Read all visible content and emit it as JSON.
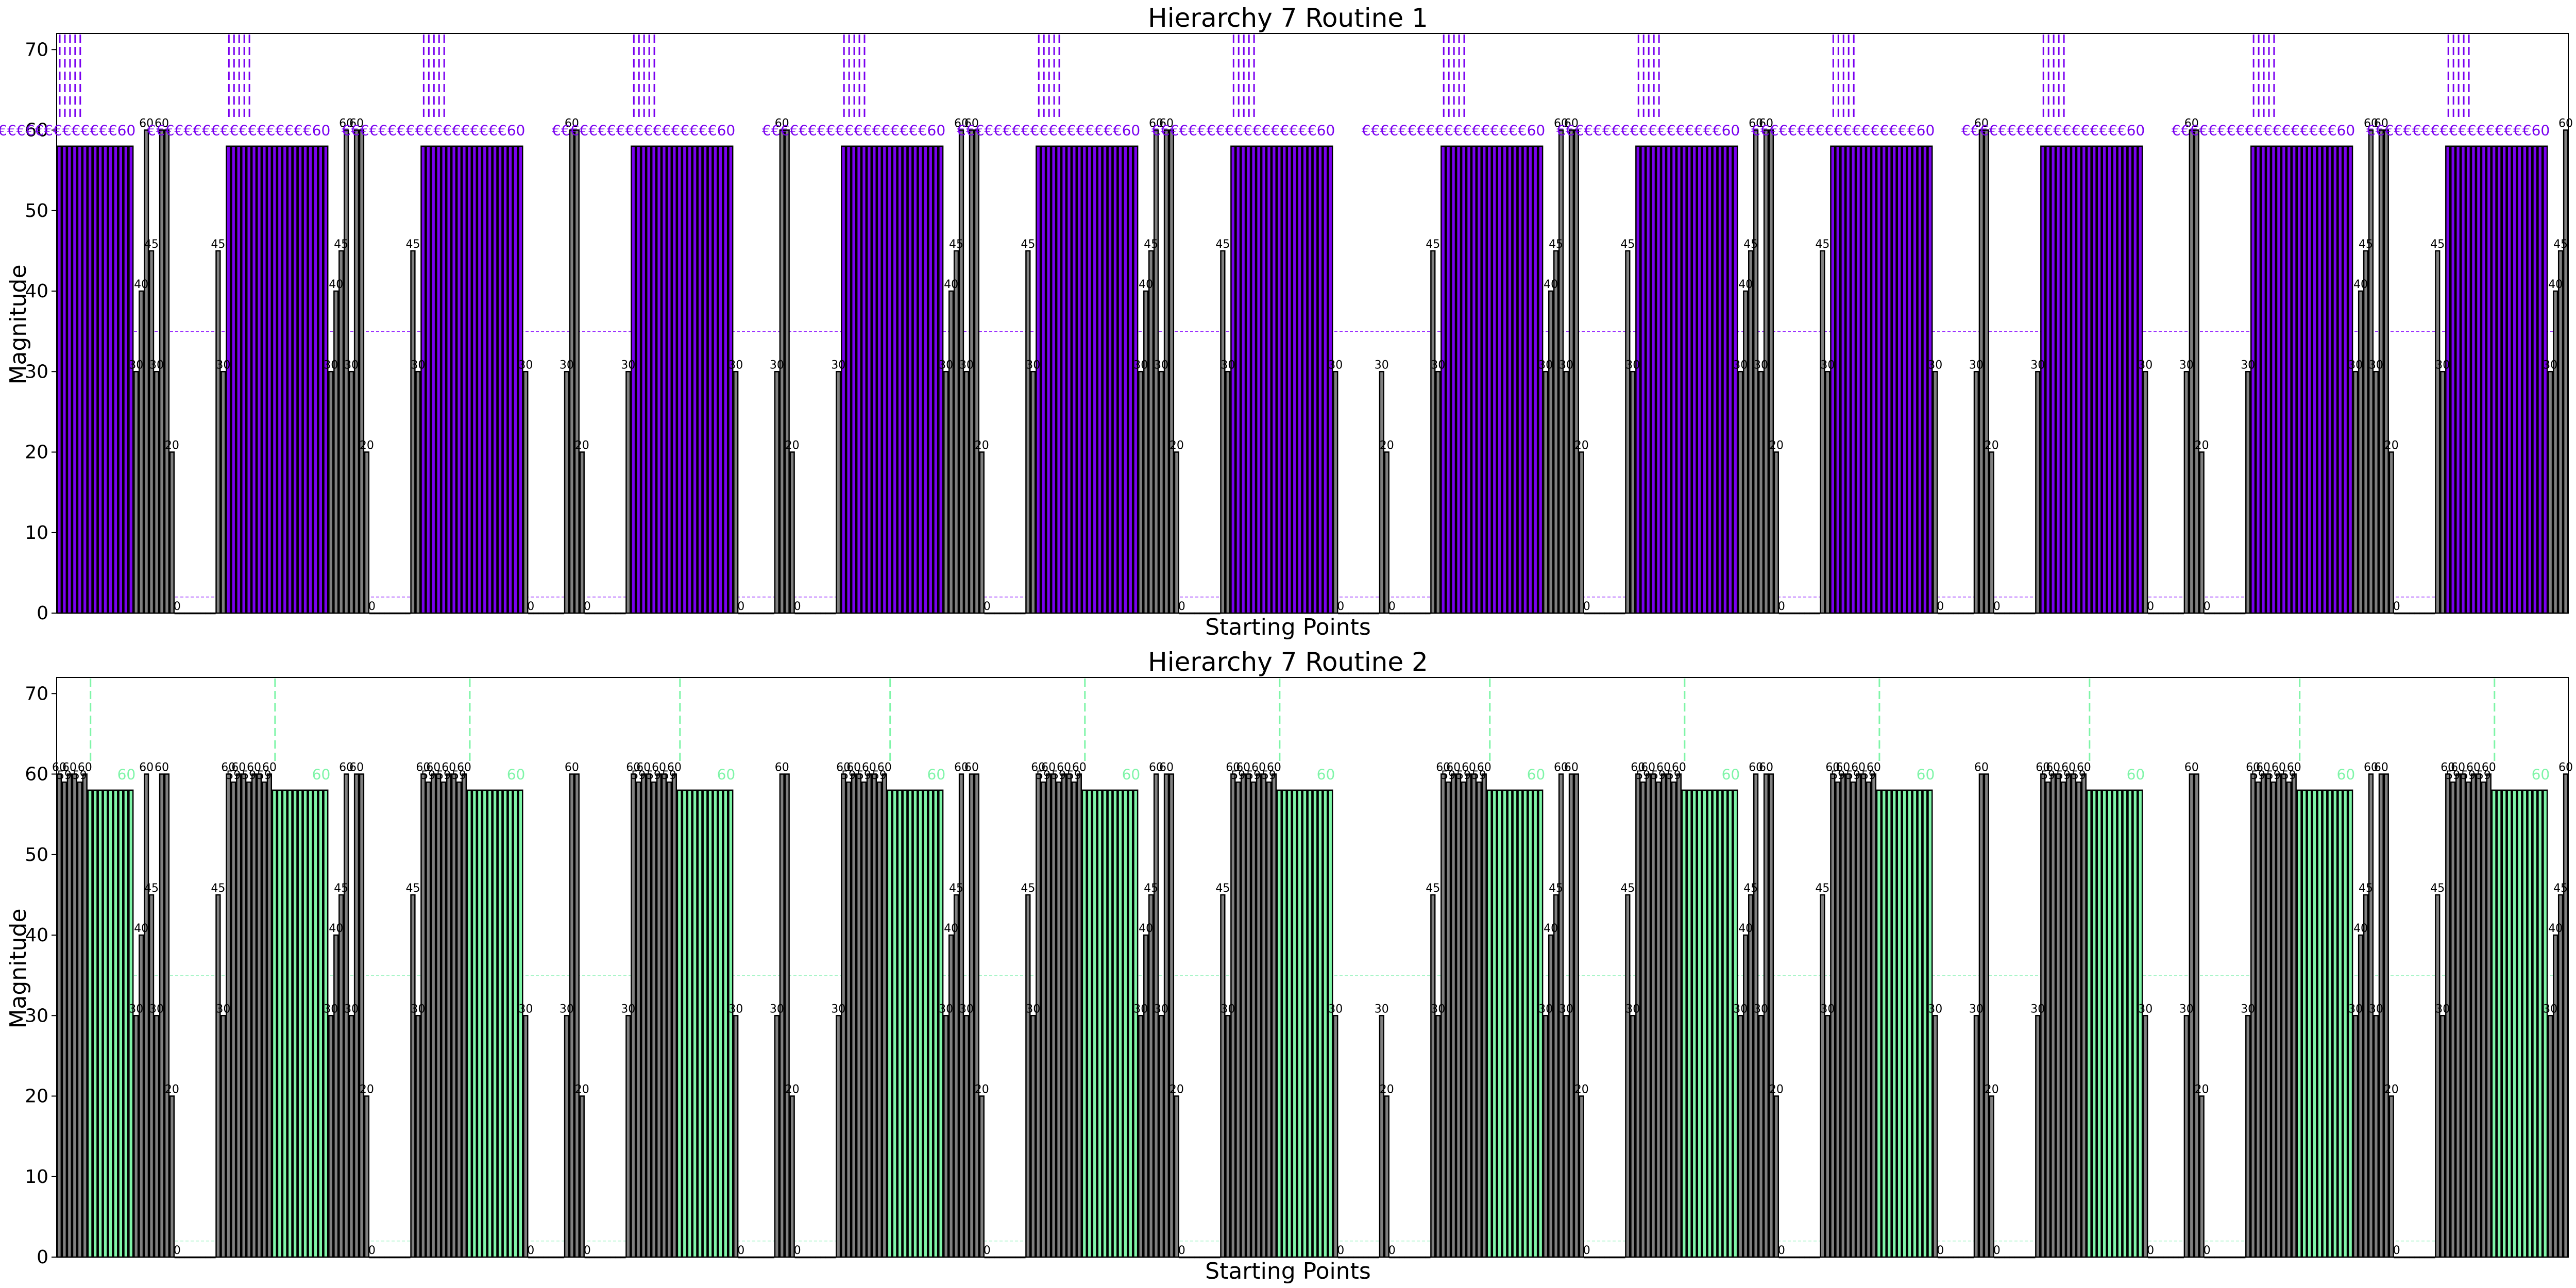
{
  "chart_data": [
    {
      "type": "bar",
      "title": "Hierarchy 7 Routine 1",
      "xlabel": "Starting Points",
      "ylabel": "Magnitude",
      "ylim": [
        0,
        72
      ],
      "yticks": [
        0,
        10,
        20,
        30,
        40,
        50,
        60,
        70
      ],
      "grid": false,
      "base_color": "#808080",
      "highlight_color": "#7a00f0",
      "reference_line_value": 35,
      "reference_line_color": "#9b30ff",
      "baseline_line_value": 2,
      "groups": [
        {
          "values": [
            58,
            58,
            58,
            58,
            58,
            58,
            58,
            58,
            58,
            58,
            58,
            58,
            58,
            58,
            58,
            30,
            40,
            60,
            45,
            30,
            60,
            60,
            20,
            0,
            0,
            0,
            0,
            0,
            0,
            0,
            0,
            45,
            30,
            58,
            58,
            58,
            58,
            58,
            58,
            58,
            58,
            58,
            58,
            58,
            58,
            58,
            58,
            58,
            58,
            58,
            58,
            58,
            58,
            30,
            40,
            45,
            60,
            30,
            60,
            60,
            20,
            0,
            0,
            0,
            0,
            0,
            0,
            0,
            0,
            45,
            30,
            58,
            58,
            58,
            58,
            58,
            58,
            58,
            58,
            58,
            58,
            58,
            58,
            58,
            58,
            58,
            58,
            58,
            58,
            58,
            58,
            30,
            0,
            0,
            0,
            0,
            0,
            0,
            0,
            30,
            60,
            60,
            20,
            0,
            0,
            0,
            0,
            0,
            0,
            0,
            0,
            30,
            58,
            58,
            58,
            58,
            58,
            58,
            58,
            58,
            58,
            58,
            58,
            58,
            58,
            58,
            58,
            58,
            58,
            58,
            58,
            58,
            30,
            0,
            0,
            0,
            0,
            0,
            0,
            0,
            30,
            60,
            60,
            20,
            0,
            0,
            0,
            0,
            0,
            0,
            0,
            0,
            30,
            58,
            58,
            58,
            58,
            58,
            58,
            58,
            58,
            58,
            58,
            58,
            58,
            58,
            58,
            58,
            58,
            58,
            58,
            58,
            58,
            30,
            40,
            45,
            60,
            30,
            60,
            60,
            20,
            0,
            0,
            0,
            0,
            0,
            0,
            0,
            0,
            45,
            30,
            58,
            58,
            58,
            58,
            58,
            58,
            58,
            58,
            58,
            58,
            58,
            58,
            58,
            58,
            58,
            58,
            58,
            58,
            58,
            58,
            30,
            40,
            45,
            60,
            30,
            60,
            60,
            20,
            0,
            0,
            0,
            0,
            0,
            0,
            0,
            0,
            45,
            30,
            58,
            58,
            58,
            58,
            58,
            58,
            58,
            58,
            58,
            58,
            58,
            58,
            58,
            58,
            58,
            58,
            58,
            58,
            58,
            58,
            30,
            0,
            0,
            0,
            0,
            0,
            0,
            0,
            0,
            30,
            20,
            0,
            0,
            0,
            0,
            0,
            0,
            0,
            0,
            45,
            30,
            58,
            58,
            58,
            58,
            58,
            58,
            58,
            58,
            58,
            58,
            58,
            58,
            58,
            58,
            58,
            58,
            58,
            58,
            58,
            58,
            30,
            40,
            45,
            60,
            30,
            60,
            60,
            20,
            0,
            0,
            0,
            0,
            0,
            0,
            0,
            0,
            45,
            30,
            58,
            58,
            58,
            58,
            58,
            58,
            58,
            58,
            58,
            58,
            58,
            58,
            58,
            58,
            58,
            58,
            58,
            58,
            58,
            58,
            30,
            40,
            45,
            60,
            30,
            60,
            60,
            20,
            0,
            0,
            0,
            0,
            0,
            0,
            0,
            0,
            45,
            30,
            58,
            58,
            58,
            58,
            58,
            58,
            58,
            58,
            58,
            58,
            58,
            58,
            58,
            58,
            58,
            58,
            58,
            58,
            58,
            58,
            30,
            0,
            0,
            0,
            0,
            0,
            0,
            0,
            30,
            60,
            60,
            20,
            0,
            0,
            0,
            0,
            0,
            0,
            0,
            0,
            30,
            58,
            58,
            58,
            58,
            58,
            58,
            58,
            58,
            58,
            58,
            58,
            58,
            58,
            58,
            58,
            58,
            58,
            58,
            58,
            58,
            30,
            0,
            0,
            0,
            0,
            0,
            0,
            0,
            30,
            60,
            60,
            20,
            0,
            0,
            0,
            0,
            0,
            0,
            0,
            0,
            30,
            58,
            58,
            58,
            58,
            58,
            58,
            58,
            58,
            58,
            58,
            58,
            58,
            58,
            58,
            58,
            58,
            58,
            58,
            58,
            58,
            30,
            40,
            45,
            60,
            30,
            60,
            60,
            20,
            0,
            0,
            0,
            0,
            0,
            0,
            0,
            0,
            45,
            30,
            58,
            58,
            58,
            58,
            58,
            58,
            58,
            58,
            58,
            58,
            58,
            58,
            58,
            58,
            58,
            58,
            58,
            58,
            58,
            58,
            30,
            40,
            45,
            60
          ]
        }
      ],
      "highlight_label": "60",
      "highlight_label_glyph": "€",
      "notes_hidden": true
    },
    {
      "type": "bar",
      "title": "Hierarchy 7 Routine 2",
      "xlabel": "Starting Points",
      "ylabel": "Magnitude",
      "ylim": [
        0,
        72
      ],
      "yticks": [
        0,
        10,
        20,
        30,
        40,
        50,
        60,
        70
      ],
      "grid": false,
      "base_color": "#808080",
      "highlight_color": "#7ff5a8",
      "reference_line_value": 35,
      "reference_line_color": "#a8f5c8",
      "baseline_line_value": 2,
      "groups": []
    }
  ]
}
